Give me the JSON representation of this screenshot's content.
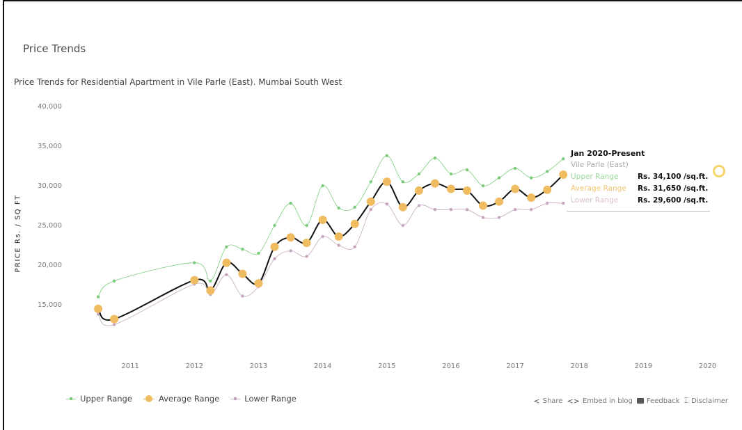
{
  "page": {
    "title": "Price Trends",
    "subtitle": "Price Trends for Residential Apartment in Vile Parle (East). Mumbai South West"
  },
  "colors": {
    "upper": "#7ccc7c",
    "average": "#f0bc62",
    "average_line": "#111111",
    "lower": "#c4a6bf"
  },
  "chart_data": {
    "type": "line",
    "ylabel": "PRICE Rs. / SQ FT",
    "ylim": [
      10000,
      40000
    ],
    "yticks": [
      "40,000",
      "35,000",
      "30,000",
      "25,000",
      "20,000",
      "15,000"
    ],
    "ytick_values": [
      40000,
      35000,
      30000,
      25000,
      20000,
      15000
    ],
    "xlim": [
      2010.0,
      2020.2
    ],
    "xticks": [
      "2011",
      "2012",
      "2013",
      "2014",
      "2015",
      "2016",
      "2017",
      "2018",
      "2019",
      "2020"
    ],
    "xtick_values": [
      2011,
      2012,
      2013,
      2014,
      2015,
      2016,
      2017,
      2018,
      2019,
      2020
    ],
    "x": [
      2010.5,
      2010.75,
      2012.0,
      2012.25,
      2012.5,
      2012.75,
      2013.0,
      2013.25,
      2013.5,
      2013.75,
      2014.0,
      2014.25,
      2014.5,
      2014.75,
      2015.0,
      2015.25,
      2015.5,
      2015.75,
      2016.0,
      2016.25,
      2016.5,
      2016.75,
      2017.0,
      2017.25,
      2017.5,
      2017.75
    ],
    "series": [
      {
        "name": "Upper Range",
        "values": [
          16000,
          18000,
          20300,
          18000,
          22300,
          22000,
          21500,
          25000,
          27800,
          25000,
          30000,
          27200,
          27300,
          30500,
          33800,
          30500,
          31500,
          33500,
          31500,
          32000,
          30000,
          31000,
          32200,
          31000,
          31800,
          33400
        ]
      },
      {
        "name": "Average Range",
        "values": [
          14500,
          13200,
          18100,
          16800,
          20300,
          18900,
          17700,
          22300,
          23500,
          22800,
          25700,
          23600,
          25200,
          28000,
          30500,
          27300,
          29400,
          30300,
          29600,
          29400,
          27500,
          28000,
          29600,
          28500,
          29500,
          31400
        ]
      },
      {
        "name": "Lower Range",
        "values": [
          13800,
          12500,
          17600,
          16300,
          18800,
          16100,
          17300,
          20800,
          21800,
          21100,
          23600,
          22500,
          22300,
          27000,
          27700,
          25000,
          27500,
          27000,
          27000,
          27000,
          26000,
          26000,
          27000,
          27000,
          27800,
          27800
        ]
      }
    ]
  },
  "tooltip": {
    "title": "Jan 2020-Present",
    "location": "Vile Parle (East)",
    "rows": [
      {
        "label": "Upper Range",
        "value": "Rs. 34,100 /sq.ft."
      },
      {
        "label": "Average Range",
        "value": "Rs. 31,650 /sq.ft."
      },
      {
        "label": "Lower Range",
        "value": "Rs. 29,600 /sq.ft."
      }
    ]
  },
  "legend": {
    "upper": "Upper Range",
    "average": "Average Range",
    "lower": "Lower Range"
  },
  "actions": {
    "share": "Share",
    "embed": "Embed in blog",
    "feedback": "Feedback",
    "disclaimer": "Disclaimer"
  }
}
